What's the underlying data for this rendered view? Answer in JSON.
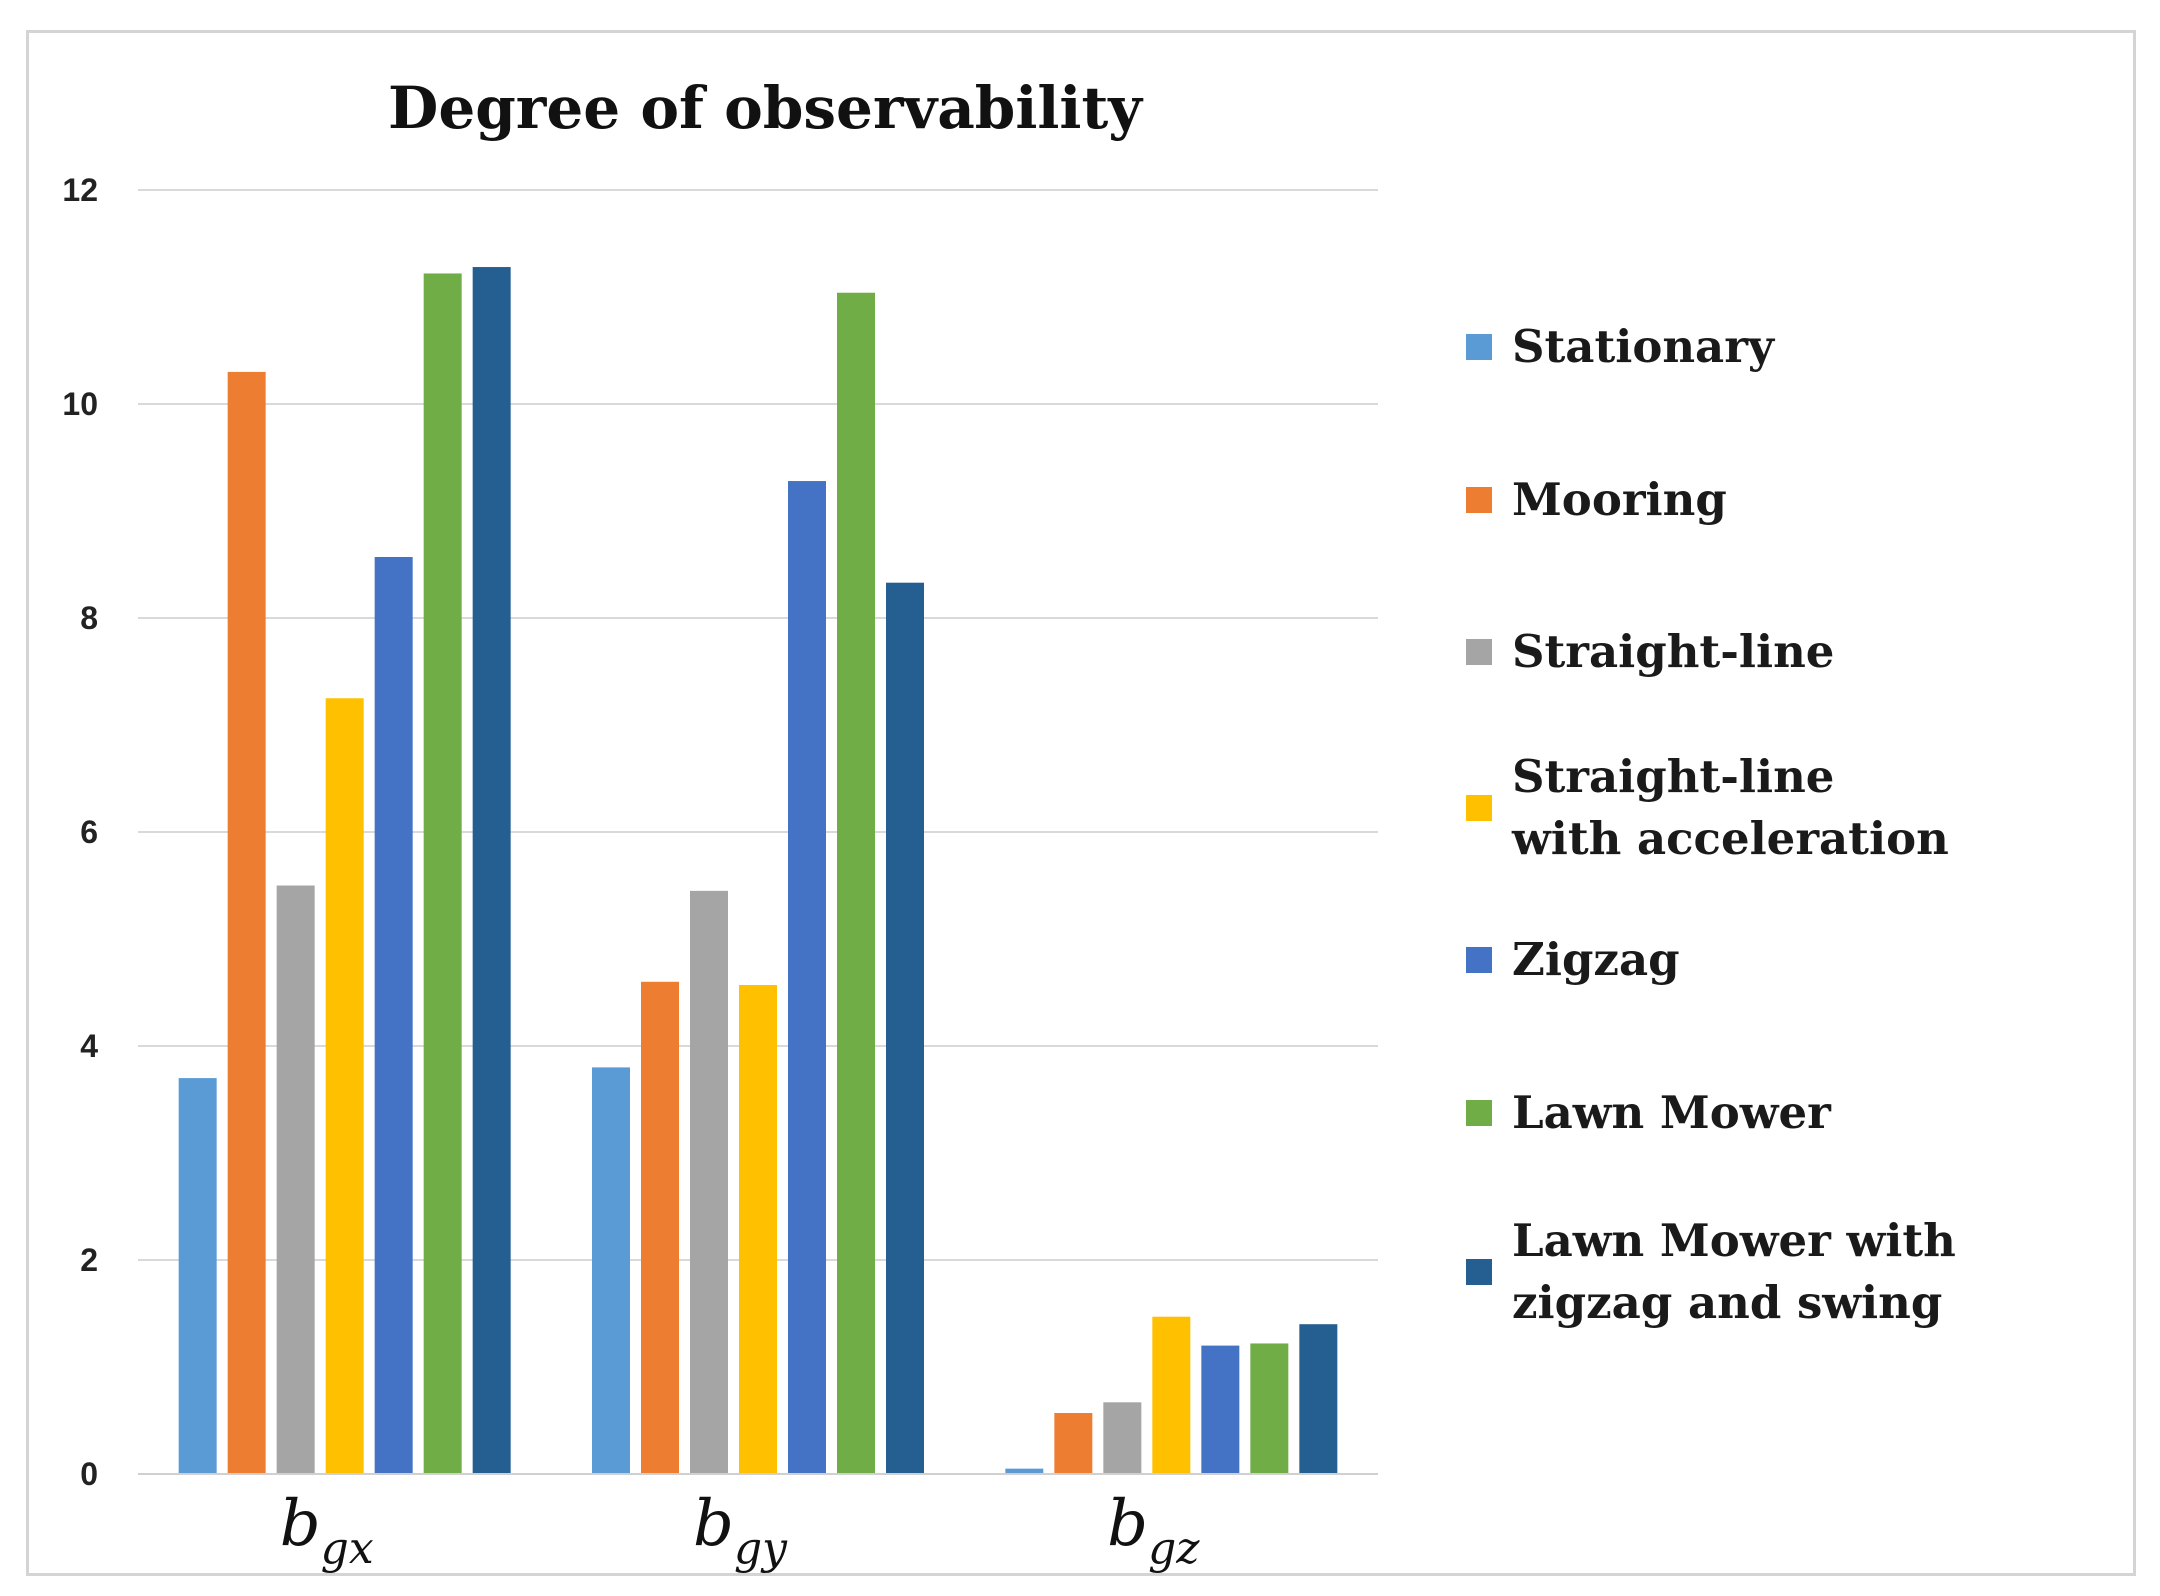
{
  "chart_data": {
    "type": "bar",
    "title": "Degree of observability",
    "xlabel": "",
    "ylabel": "",
    "ylim": [
      0,
      12
    ],
    "yticks": [
      0,
      2,
      4,
      6,
      8,
      10,
      12
    ],
    "grid": true,
    "legend_position": "right",
    "categories": [
      {
        "base": "b",
        "sub": "gx"
      },
      {
        "base": "b",
        "sub": "gy"
      },
      {
        "base": "b",
        "sub": "gz"
      }
    ],
    "series": [
      {
        "name": "Stationary",
        "legend_lines": [
          "Stationary"
        ],
        "color": "#5B9BD5",
        "values": [
          3.7,
          3.8,
          0.05
        ]
      },
      {
        "name": "Mooring",
        "legend_lines": [
          "Mooring"
        ],
        "color": "#ED7D31",
        "values": [
          10.3,
          4.6,
          0.57
        ]
      },
      {
        "name": "Straight-line",
        "legend_lines": [
          "Straight-line"
        ],
        "color": "#A5A5A5",
        "values": [
          5.5,
          5.45,
          0.67
        ]
      },
      {
        "name": "Straight-line with acceleration",
        "legend_lines": [
          "Straight-line",
          "with acceleration"
        ],
        "color": "#FFC000",
        "values": [
          7.25,
          4.57,
          1.47
        ]
      },
      {
        "name": "Zigzag",
        "legend_lines": [
          " Zigzag"
        ],
        "color": "#4472C4",
        "values": [
          8.57,
          9.28,
          1.2
        ]
      },
      {
        "name": "Lawn Mower",
        "legend_lines": [
          "Lawn Mower"
        ],
        "color": "#70AD47",
        "values": [
          11.22,
          11.04,
          1.22
        ]
      },
      {
        "name": "Lawn Mower with zigzag and swing",
        "legend_lines": [
          "Lawn Mower with",
          "zigzag and swing"
        ],
        "color": "#255E91",
        "values": [
          11.28,
          8.33,
          1.4
        ]
      }
    ]
  }
}
